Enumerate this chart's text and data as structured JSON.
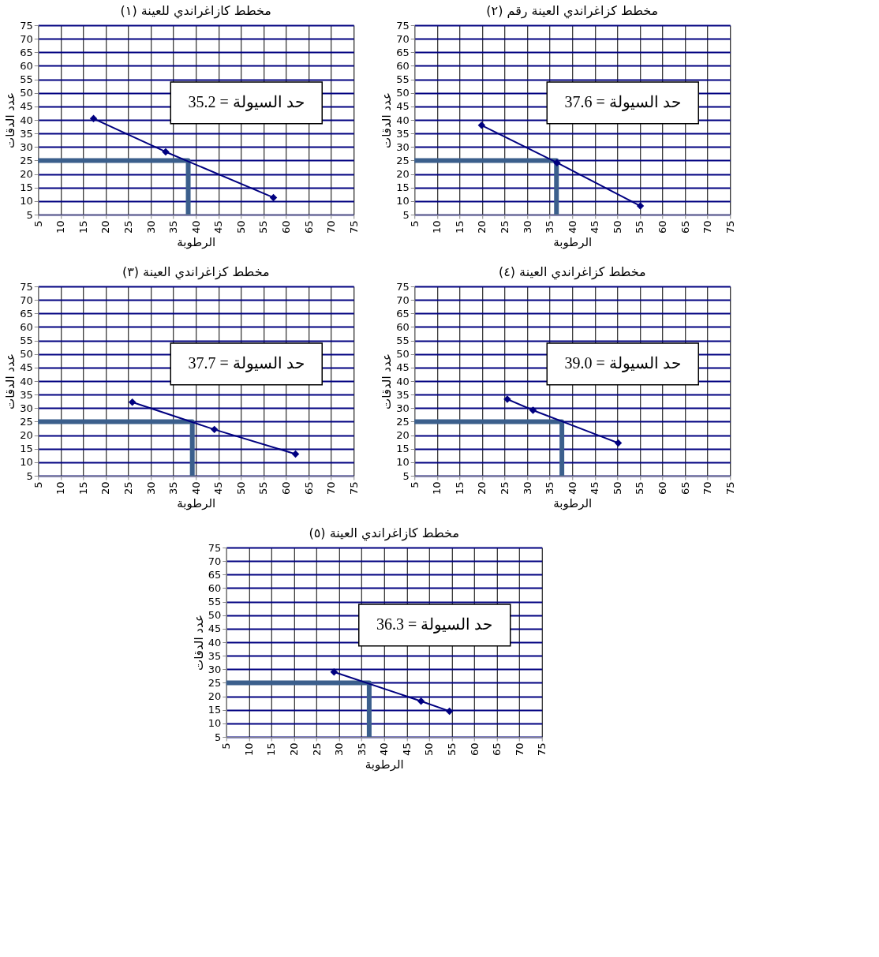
{
  "chart_data": [
    {
      "type": "line",
      "title": "مخطط كازاغراندي للعينة (١)",
      "xlabel": "الرطوبة",
      "ylabel": "عدد الدقات",
      "xlim": [
        5,
        75
      ],
      "ylim": [
        5,
        75
      ],
      "xticks": [
        5,
        10,
        15,
        20,
        25,
        30,
        35,
        40,
        45,
        50,
        55,
        60,
        65,
        70,
        75
      ],
      "yticks": [
        5,
        10,
        15,
        20,
        25,
        30,
        35,
        40,
        45,
        50,
        55,
        60,
        65,
        70,
        75
      ],
      "grid": true,
      "marker": "diamond",
      "annotations": [
        "حد السيولة = 35.2"
      ],
      "series": [
        {
          "color": "#000080",
          "x": [
            17.3,
            33.3,
            57.2
          ],
          "values": [
            40.5,
            28.2,
            11.3
          ]
        },
        {
          "color": "#3b5f8c",
          "marker": "none",
          "x": [
            5,
            38.3,
            38.3
          ],
          "values": [
            25,
            25,
            5
          ]
        }
      ]
    },
    {
      "type": "line",
      "title": "مخطط كزاغراندي العينة رقم (٢)",
      "xlabel": "الرطوبة",
      "ylabel": "عدد الدقات",
      "xlim": [
        5,
        75
      ],
      "ylim": [
        5,
        75
      ],
      "xticks": [
        5,
        10,
        15,
        20,
        25,
        30,
        35,
        40,
        45,
        50,
        55,
        60,
        65,
        70,
        75
      ],
      "yticks": [
        5,
        10,
        15,
        20,
        25,
        30,
        35,
        40,
        45,
        50,
        55,
        60,
        65,
        70,
        75
      ],
      "grid": true,
      "marker": "diamond",
      "annotations": [
        "حد السيولة = 37.6"
      ],
      "series": [
        {
          "color": "#000080",
          "x": [
            19.9,
            36.6,
            55.1
          ],
          "values": [
            38.0,
            24.2,
            8.2
          ]
        },
        {
          "color": "#3b5f8c",
          "marker": "none",
          "x": [
            5,
            36.5,
            36.5
          ],
          "values": [
            25,
            25,
            5
          ]
        }
      ]
    },
    {
      "type": "line",
      "title": "مخطط كزاغراندي العينة (٣)",
      "xlabel": "الرطوبة",
      "ylabel": "عدد الدقات",
      "xlim": [
        5,
        75
      ],
      "ylim": [
        5,
        75
      ],
      "xticks": [
        5,
        10,
        15,
        20,
        25,
        30,
        35,
        40,
        45,
        50,
        55,
        60,
        65,
        70,
        75
      ],
      "yticks": [
        5,
        10,
        15,
        20,
        25,
        30,
        35,
        40,
        45,
        50,
        55,
        60,
        65,
        70,
        75
      ],
      "grid": true,
      "marker": "diamond",
      "annotations": [
        "حد السيولة = 37.7"
      ],
      "series": [
        {
          "color": "#000080",
          "x": [
            25.9,
            44.1,
            62.1
          ],
          "values": [
            32.2,
            22.1,
            13.0
          ]
        },
        {
          "color": "#3b5f8c",
          "marker": "none",
          "x": [
            5,
            39.2,
            39.2
          ],
          "values": [
            25,
            25,
            5
          ]
        }
      ]
    },
    {
      "type": "line",
      "title": "مخطط كزاغراندي العينة (٤)",
      "xlabel": "الرطوبة",
      "ylabel": "عدد الدقات",
      "xlim": [
        5,
        75
      ],
      "ylim": [
        5,
        75
      ],
      "xticks": [
        5,
        10,
        15,
        20,
        25,
        30,
        35,
        40,
        45,
        50,
        55,
        60,
        65,
        70,
        75
      ],
      "yticks": [
        5,
        10,
        15,
        20,
        25,
        30,
        35,
        40,
        45,
        50,
        55,
        60,
        65,
        70,
        75
      ],
      "grid": true,
      "marker": "diamond",
      "annotations": [
        "حد السيولة = 39.0"
      ],
      "series": [
        {
          "color": "#000080",
          "x": [
            25.6,
            31.3,
            50.2
          ],
          "values": [
            33.3,
            29.2,
            17.1
          ]
        },
        {
          "color": "#3b5f8c",
          "marker": "none",
          "x": [
            5,
            37.7,
            37.7
          ],
          "values": [
            25,
            25,
            5
          ]
        }
      ]
    },
    {
      "type": "line",
      "title": "مخطط كازاغراندي العينة (٥)",
      "xlabel": "الرطوبة",
      "ylabel": "عدد الدقات",
      "xlim": [
        5,
        75
      ],
      "ylim": [
        5,
        75
      ],
      "xticks": [
        5,
        10,
        15,
        20,
        25,
        30,
        35,
        40,
        45,
        50,
        55,
        60,
        65,
        70,
        75
      ],
      "yticks": [
        5,
        10,
        15,
        20,
        25,
        30,
        35,
        40,
        45,
        50,
        55,
        60,
        65,
        70,
        75
      ],
      "grid": true,
      "marker": "diamond",
      "annotations": [
        "حد السيولة = 36.3"
      ],
      "series": [
        {
          "color": "#000080",
          "x": [
            28.9,
            48.2,
            54.5
          ],
          "values": [
            29.0,
            18.2,
            14.5
          ]
        },
        {
          "color": "#3b5f8c",
          "marker": "none",
          "x": [
            5,
            36.7,
            36.7
          ],
          "values": [
            25,
            25,
            5
          ]
        }
      ]
    }
  ]
}
